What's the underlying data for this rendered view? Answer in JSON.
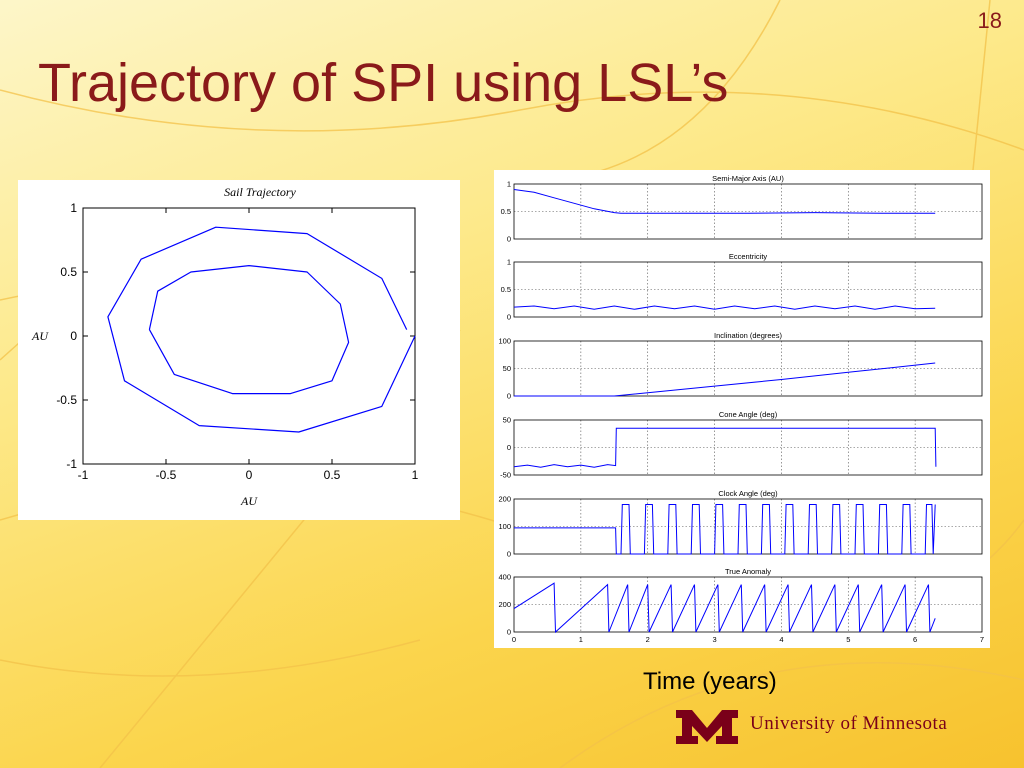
{
  "slide": {
    "number": "18",
    "title": "Trajectory of SPI using LSL’s",
    "x_axis_caption": "Time (years)",
    "logo_text": "University of Minnesota",
    "colors": {
      "title": "#8a1a1a",
      "line": "#0000ff",
      "logo": "#7a0019"
    }
  },
  "chart_data": [
    {
      "type": "line",
      "title": "Sail Trajectory",
      "xlabel": "AU",
      "ylabel": "AU",
      "xlim": [
        -1,
        1
      ],
      "ylim": [
        -1,
        1
      ],
      "xticks": [
        "-1",
        "-0.5",
        "0",
        "0.5",
        "1"
      ],
      "yticks": [
        "1",
        "0.5",
        "0",
        "-0.5",
        "-1"
      ],
      "grid": false,
      "series": [
        {
          "points": [
            [
              1.0,
              0.0
            ],
            [
              0.8,
              -0.55
            ],
            [
              0.3,
              -0.75
            ],
            [
              -0.3,
              -0.7
            ],
            [
              -0.75,
              -0.35
            ],
            [
              -0.85,
              0.15
            ],
            [
              -0.65,
              0.6
            ],
            [
              -0.2,
              0.85
            ],
            [
              0.35,
              0.8
            ],
            [
              0.8,
              0.45
            ],
            [
              0.95,
              0.05
            ]
          ]
        },
        {
          "points": [
            [
              -0.6,
              0.05
            ],
            [
              -0.55,
              0.35
            ],
            [
              -0.35,
              0.5
            ],
            [
              0.0,
              0.55
            ],
            [
              0.35,
              0.5
            ],
            [
              0.55,
              0.25
            ],
            [
              0.6,
              -0.05
            ],
            [
              0.5,
              -0.35
            ],
            [
              0.25,
              -0.45
            ],
            [
              -0.1,
              -0.45
            ],
            [
              -0.45,
              -0.3
            ],
            [
              -0.6,
              0.05
            ]
          ]
        }
      ]
    },
    {
      "type": "line",
      "title": "Semi-Major Axis (AU)",
      "yticks": [
        "1",
        "0.5",
        "0"
      ],
      "ylim": [
        0,
        1
      ],
      "xlim": [
        0,
        7
      ],
      "grid": true,
      "series": [
        {
          "x": [
            0,
            0.3,
            0.6,
            0.9,
            1.2,
            1.5,
            1.6,
            2.5,
            3.5,
            4.5,
            5.5,
            6.3
          ],
          "y": [
            0.9,
            0.85,
            0.75,
            0.65,
            0.55,
            0.48,
            0.47,
            0.47,
            0.47,
            0.48,
            0.47,
            0.47
          ]
        }
      ]
    },
    {
      "type": "line",
      "title": "Eccentricity",
      "yticks": [
        "1",
        "0.5",
        "0"
      ],
      "ylim": [
        0,
        1
      ],
      "xlim": [
        0,
        7
      ],
      "grid": true,
      "series": [
        {
          "x": [
            0,
            0.3,
            0.6,
            0.9,
            1.2,
            1.5,
            1.8,
            2.1,
            2.4,
            2.7,
            3.0,
            3.3,
            3.6,
            3.9,
            4.2,
            4.5,
            4.8,
            5.1,
            5.4,
            5.7,
            6.0,
            6.3
          ],
          "y": [
            0.18,
            0.2,
            0.15,
            0.2,
            0.14,
            0.2,
            0.14,
            0.2,
            0.15,
            0.2,
            0.14,
            0.2,
            0.15,
            0.2,
            0.14,
            0.2,
            0.15,
            0.2,
            0.14,
            0.2,
            0.15,
            0.16
          ]
        }
      ]
    },
    {
      "type": "line",
      "title": "Inclination (degrees)",
      "yticks": [
        "100",
        "50",
        "0"
      ],
      "ylim": [
        0,
        100
      ],
      "xlim": [
        0,
        7
      ],
      "grid": true,
      "series": [
        {
          "x": [
            0,
            1.5,
            2.0,
            3.0,
            4.0,
            5.0,
            6.3
          ],
          "y": [
            0,
            0,
            6,
            18,
            30,
            43,
            60
          ]
        }
      ]
    },
    {
      "type": "line",
      "title": "Cone Angle (deg)",
      "yticks": [
        "50",
        "0",
        "-50"
      ],
      "ylim": [
        -50,
        50
      ],
      "xlim": [
        0,
        7
      ],
      "grid": true,
      "series": [
        {
          "x": [
            0,
            0.2,
            0.4,
            0.6,
            0.8,
            1.0,
            1.2,
            1.4,
            1.52,
            1.53,
            6.3,
            6.31
          ],
          "y": [
            -35,
            -32,
            -36,
            -31,
            -35,
            -32,
            -36,
            -31,
            -33,
            35,
            35,
            -35
          ]
        }
      ]
    },
    {
      "type": "line",
      "title": "Clock Angle (deg)",
      "yticks": [
        "200",
        "100",
        "0"
      ],
      "ylim": [
        0,
        200
      ],
      "xlim": [
        0,
        7
      ],
      "grid": true,
      "series": [
        {
          "x": [
            0,
            1.52,
            1.53,
            1.6,
            1.62,
            1.72,
            1.74,
            1.95,
            1.97,
            2.07,
            2.09,
            2.3,
            2.32,
            2.42,
            2.44,
            2.65,
            2.67,
            2.77,
            2.79,
            3.0,
            3.02,
            3.12,
            3.14,
            3.35,
            3.37,
            3.47,
            3.49,
            3.7,
            3.72,
            3.82,
            3.84,
            4.05,
            4.07,
            4.17,
            4.19,
            4.4,
            4.42,
            4.52,
            4.54,
            4.75,
            4.77,
            4.87,
            4.89,
            5.1,
            5.12,
            5.22,
            5.24,
            5.45,
            5.47,
            5.57,
            5.59,
            5.8,
            5.82,
            5.92,
            5.94,
            6.15,
            6.17,
            6.25,
            6.27,
            6.3
          ],
          "y": [
            95,
            95,
            0,
            0,
            180,
            180,
            0,
            0,
            180,
            180,
            0,
            0,
            180,
            180,
            0,
            0,
            180,
            180,
            0,
            0,
            180,
            180,
            0,
            0,
            180,
            180,
            0,
            0,
            180,
            180,
            0,
            0,
            180,
            180,
            0,
            0,
            180,
            180,
            0,
            0,
            180,
            180,
            0,
            0,
            180,
            180,
            0,
            0,
            180,
            180,
            0,
            0,
            180,
            180,
            0,
            0,
            180,
            180,
            0,
            180
          ]
        }
      ]
    },
    {
      "type": "line",
      "title": "True Anomaly",
      "yticks": [
        "400",
        "200",
        "0"
      ],
      "ylim": [
        0,
        400
      ],
      "xlim": [
        0,
        7
      ],
      "xticks": [
        "0",
        "1",
        "2",
        "3",
        "4",
        "5",
        "6",
        "7"
      ],
      "grid": true,
      "series": [
        {
          "x": [
            0,
            0.6,
            0.62,
            1.4,
            1.42,
            1.7,
            1.72,
            2.0,
            2.02,
            2.35,
            2.37,
            2.7,
            2.72,
            3.05,
            3.07,
            3.4,
            3.42,
            3.75,
            3.77,
            4.1,
            4.12,
            4.45,
            4.47,
            4.8,
            4.82,
            5.15,
            5.17,
            5.5,
            5.52,
            5.85,
            5.87,
            6.2,
            6.22,
            6.3
          ],
          "y": [
            170,
            355,
            0,
            345,
            0,
            345,
            0,
            345,
            0,
            345,
            0,
            345,
            0,
            345,
            0,
            345,
            0,
            345,
            0,
            345,
            0,
            345,
            0,
            345,
            0,
            345,
            0,
            345,
            0,
            345,
            0,
            345,
            0,
            100
          ]
        }
      ]
    }
  ]
}
